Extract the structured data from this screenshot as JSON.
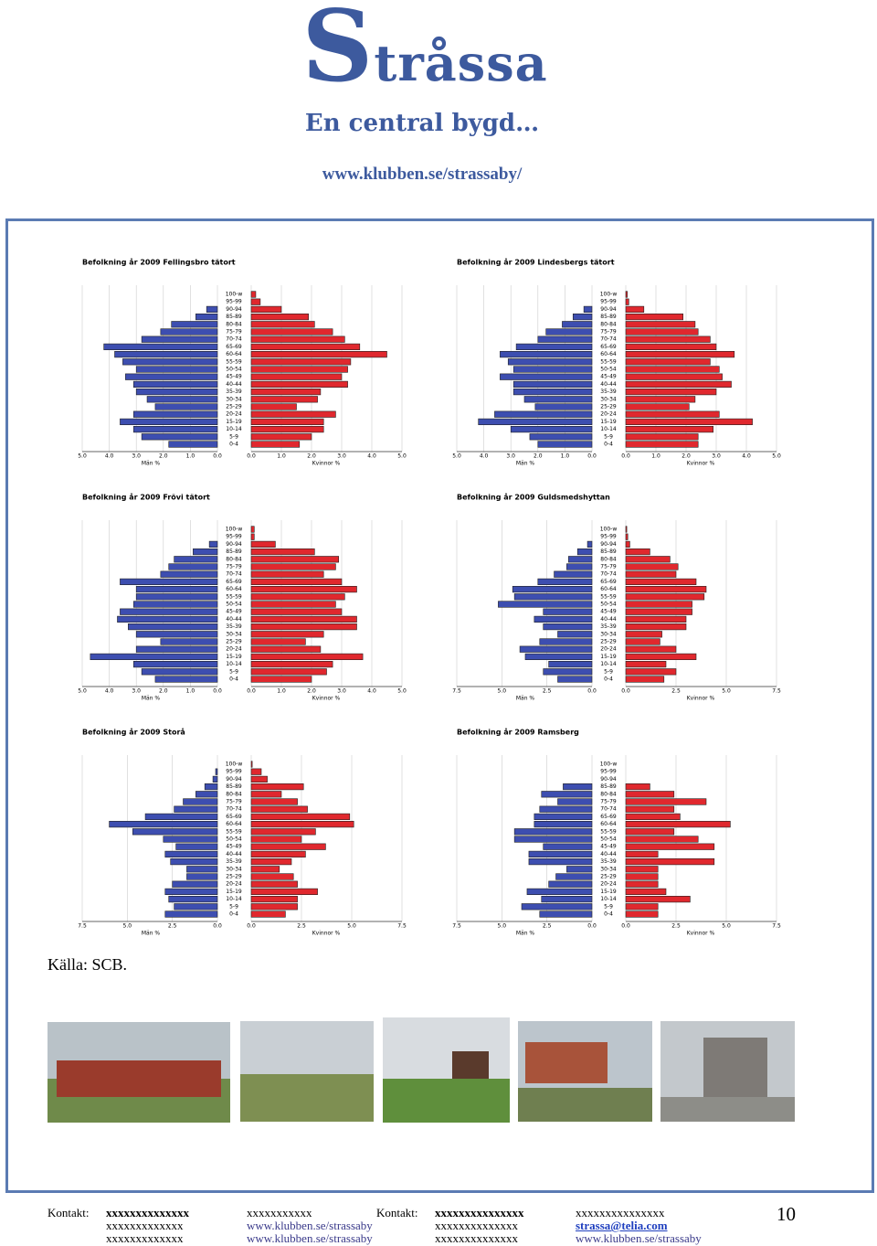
{
  "header": {
    "title": "Stråssa",
    "subtitle": "En central bygd…",
    "url": "www.klubben.se/strassaby/"
  },
  "chart_data": [
    {
      "type": "pyramid",
      "title": "Befolkning år 2009 Fellingsbro tätort",
      "categories": [
        "100-w",
        "95-99",
        "90-94",
        "85-89",
        "80-84",
        "75-79",
        "70-74",
        "65-69",
        "60-64",
        "55-59",
        "50-54",
        "45-49",
        "40-44",
        "35-39",
        "30-34",
        "25-29",
        "20-24",
        "15-19",
        "10-14",
        "5-9",
        "0-4"
      ],
      "series": [
        {
          "label": "Män %",
          "side": "left",
          "color": "#3d4eb0",
          "xlim": [
            0,
            5
          ],
          "xticks": [
            {
              "value": 5,
              "label": "5.0"
            },
            {
              "value": 4,
              "label": "4.0"
            },
            {
              "value": 3,
              "label": "3.0"
            },
            {
              "value": 2,
              "label": "2.0"
            },
            {
              "value": 1,
              "label": "1.0"
            },
            {
              "value": 0,
              "label": "0.0"
            }
          ],
          "values": [
            0,
            0,
            0.4,
            0.8,
            1.7,
            2.1,
            2.8,
            4.2,
            3.8,
            3.5,
            3.0,
            3.4,
            3.1,
            3.0,
            2.6,
            2.3,
            3.1,
            3.6,
            3.1,
            2.8,
            1.8
          ]
        },
        {
          "label": "Kvinnor %",
          "side": "right",
          "color": "#e0282e",
          "xlim": [
            0,
            5
          ],
          "xticks": [
            {
              "value": 0,
              "label": "0.0"
            },
            {
              "value": 1,
              "label": "1.0"
            },
            {
              "value": 2,
              "label": "2.0"
            },
            {
              "value": 3,
              "label": "3.0"
            },
            {
              "value": 4,
              "label": "4.0"
            },
            {
              "value": 5,
              "label": "5.0"
            }
          ],
          "values": [
            0.15,
            0.3,
            1.0,
            1.9,
            2.1,
            2.7,
            3.1,
            3.6,
            4.5,
            3.3,
            3.2,
            3.0,
            3.2,
            2.3,
            2.2,
            1.5,
            2.8,
            2.4,
            2.4,
            2.0,
            1.6
          ]
        }
      ]
    },
    {
      "type": "pyramid",
      "title": "Befolkning år 2009 Lindesbergs tätort",
      "categories": [
        "100-w",
        "95-99",
        "90-94",
        "85-89",
        "80-84",
        "75-79",
        "70-74",
        "65-69",
        "60-64",
        "55-59",
        "50-54",
        "45-49",
        "40-44",
        "35-39",
        "30-34",
        "25-29",
        "20-24",
        "15-19",
        "10-14",
        "5-9",
        "0-4"
      ],
      "series": [
        {
          "label": "Män %",
          "side": "left",
          "color": "#3d4eb0",
          "xlim": [
            0,
            5
          ],
          "xticks": [
            {
              "value": 5,
              "label": "5.0"
            },
            {
              "value": 4,
              "label": "4.0"
            },
            {
              "value": 3,
              "label": "3.0"
            },
            {
              "value": 2,
              "label": "2.0"
            },
            {
              "value": 1,
              "label": "1.0"
            },
            {
              "value": 0,
              "label": "0.0"
            }
          ],
          "values": [
            0,
            0,
            0.3,
            0.7,
            1.1,
            1.7,
            2.0,
            2.8,
            3.4,
            3.1,
            2.9,
            3.4,
            2.9,
            2.9,
            2.5,
            2.1,
            3.6,
            4.2,
            3.0,
            2.3,
            2.0
          ]
        },
        {
          "label": "Kvinnor %",
          "side": "right",
          "color": "#e0282e",
          "xlim": [
            0,
            5
          ],
          "xticks": [
            {
              "value": 0,
              "label": "0.0"
            },
            {
              "value": 1,
              "label": "1.0"
            },
            {
              "value": 2,
              "label": "2.0"
            },
            {
              "value": 3,
              "label": "3.0"
            },
            {
              "value": 4,
              "label": "4.0"
            },
            {
              "value": 5,
              "label": "5.0"
            }
          ],
          "values": [
            0.05,
            0.1,
            0.6,
            1.9,
            2.3,
            2.4,
            2.8,
            3.0,
            3.6,
            2.8,
            3.1,
            3.2,
            3.5,
            3.0,
            2.3,
            2.1,
            3.1,
            4.2,
            2.9,
            2.4,
            2.4
          ]
        }
      ]
    },
    {
      "type": "pyramid",
      "title": "Befolkning år 2009 Frövi tätort",
      "categories": [
        "100-w",
        "95-99",
        "90-94",
        "85-89",
        "80-84",
        "75-79",
        "70-74",
        "65-69",
        "60-64",
        "55-59",
        "50-54",
        "45-49",
        "40-44",
        "35-39",
        "30-34",
        "25-29",
        "20-24",
        "15-19",
        "10-14",
        "5-9",
        "0-4"
      ],
      "series": [
        {
          "label": "Män %",
          "side": "left",
          "color": "#3d4eb0",
          "xlim": [
            0,
            5
          ],
          "xticks": [
            {
              "value": 5,
              "label": "5.0"
            },
            {
              "value": 4,
              "label": "4.0"
            },
            {
              "value": 3,
              "label": "3.0"
            },
            {
              "value": 2,
              "label": "2.0"
            },
            {
              "value": 1,
              "label": "1.0"
            },
            {
              "value": 0,
              "label": "0.0"
            }
          ],
          "values": [
            0,
            0,
            0.3,
            0.9,
            1.6,
            1.8,
            2.1,
            3.6,
            3.0,
            3.0,
            3.1,
            3.6,
            3.7,
            3.3,
            3.0,
            2.1,
            3.0,
            4.7,
            3.1,
            2.8,
            2.3
          ]
        },
        {
          "label": "Kvinnor %",
          "side": "right",
          "color": "#e0282e",
          "xlim": [
            0,
            5
          ],
          "xticks": [
            {
              "value": 0,
              "label": "0.0"
            },
            {
              "value": 1,
              "label": "1.0"
            },
            {
              "value": 2,
              "label": "2.0"
            },
            {
              "value": 3,
              "label": "3.0"
            },
            {
              "value": 4,
              "label": "4.0"
            },
            {
              "value": 5,
              "label": "5.0"
            }
          ],
          "values": [
            0.1,
            0.1,
            0.8,
            2.1,
            2.9,
            2.8,
            2.4,
            3.0,
            3.5,
            3.1,
            2.8,
            3.0,
            3.5,
            3.5,
            2.4,
            1.8,
            2.3,
            3.7,
            2.7,
            2.5,
            2.0
          ]
        }
      ]
    },
    {
      "type": "pyramid",
      "title": "Befolkning år 2009 Guldsmedshyttan",
      "categories": [
        "100-w",
        "95-99",
        "90-94",
        "85-89",
        "80-84",
        "75-79",
        "70-74",
        "65-69",
        "60-64",
        "55-59",
        "50-54",
        "45-49",
        "40-44",
        "35-39",
        "30-34",
        "25-29",
        "20-24",
        "15-19",
        "10-14",
        "5-9",
        "0-4"
      ],
      "series": [
        {
          "label": "Män %",
          "side": "left",
          "color": "#3d4eb0",
          "xlim": [
            0,
            7.5
          ],
          "xticks": [
            7.5,
            {
              "value": 5,
              "label": "5.0"
            },
            2.5,
            {
              "value": 0,
              "label": "0.0"
            }
          ],
          "values": [
            0,
            0,
            0.25,
            0.8,
            1.3,
            1.4,
            2.1,
            3.0,
            4.4,
            4.3,
            5.2,
            2.7,
            3.2,
            2.7,
            1.9,
            2.9,
            4.0,
            3.7,
            2.4,
            2.7,
            1.9
          ]
        },
        {
          "label": "Kvinnor %",
          "side": "right",
          "color": "#e0282e",
          "xlim": [
            0,
            7.5
          ],
          "xticks": [
            {
              "value": 0,
              "label": "0.0"
            },
            2.5,
            {
              "value": 5,
              "label": "5.0"
            },
            7.5
          ],
          "values": [
            0.05,
            0.1,
            0.2,
            1.2,
            2.2,
            2.6,
            2.5,
            3.5,
            4.0,
            3.9,
            3.3,
            3.3,
            3.0,
            3.0,
            1.8,
            1.7,
            2.5,
            3.5,
            2.0,
            2.5,
            1.9
          ]
        }
      ]
    },
    {
      "type": "pyramid",
      "title": "Befolkning år 2009 Storå",
      "categories": [
        "100-w",
        "95-99",
        "90-94",
        "85-89",
        "80-84",
        "75-79",
        "70-74",
        "65-69",
        "60-64",
        "55-59",
        "50-54",
        "45-49",
        "40-44",
        "35-39",
        "30-34",
        "25-29",
        "20-24",
        "15-19",
        "10-14",
        "5-9",
        "0-4"
      ],
      "series": [
        {
          "label": "Män %",
          "side": "left",
          "color": "#3d4eb0",
          "xlim": [
            0,
            7.5
          ],
          "xticks": [
            7.5,
            {
              "value": 5,
              "label": "5.0"
            },
            2.5,
            {
              "value": 0,
              "label": "0.0"
            }
          ],
          "values": [
            0,
            0.1,
            0.25,
            0.7,
            1.2,
            1.9,
            2.4,
            4.0,
            6.0,
            4.7,
            3.0,
            2.3,
            2.9,
            2.6,
            1.7,
            1.7,
            2.5,
            2.9,
            2.7,
            2.4,
            2.9
          ]
        },
        {
          "label": "Kvinnor %",
          "side": "right",
          "color": "#e0282e",
          "xlim": [
            0,
            7.5
          ],
          "xticks": [
            {
              "value": 0,
              "label": "0.0"
            },
            2.5,
            {
              "value": 5,
              "label": "5.0"
            },
            7.5
          ],
          "values": [
            0.05,
            0.5,
            0.8,
            2.6,
            1.5,
            2.3,
            2.8,
            4.9,
            5.1,
            3.2,
            2.5,
            3.7,
            2.7,
            2.0,
            1.4,
            2.1,
            2.3,
            3.3,
            2.3,
            2.3,
            1.7
          ]
        }
      ]
    },
    {
      "type": "pyramid",
      "title": "Befolkning år 2009 Ramsberg",
      "categories": [
        "100-w",
        "95-99",
        "90-94",
        "85-89",
        "80-84",
        "75-79",
        "70-74",
        "65-69",
        "60-64",
        "55-59",
        "50-54",
        "45-49",
        "40-44",
        "35-39",
        "30-34",
        "25-29",
        "20-24",
        "15-19",
        "10-14",
        "5-9",
        "0-4"
      ],
      "series": [
        {
          "label": "Män %",
          "side": "left",
          "color": "#3d4eb0",
          "xlim": [
            0,
            7.5
          ],
          "xticks": [
            7.5,
            {
              "value": 5,
              "label": "5.0"
            },
            2.5,
            {
              "value": 0,
              "label": "0.0"
            }
          ],
          "values": [
            0,
            0,
            0,
            1.6,
            2.8,
            1.9,
            2.9,
            3.2,
            3.2,
            4.3,
            4.3,
            2.7,
            3.5,
            3.5,
            1.4,
            2.0,
            2.4,
            3.6,
            2.8,
            3.9,
            2.9
          ]
        },
        {
          "label": "Kvinnor %",
          "side": "right",
          "color": "#e0282e",
          "xlim": [
            0,
            7.5
          ],
          "xticks": [
            {
              "value": 0,
              "label": "0.0"
            },
            2.5,
            {
              "value": 5,
              "label": "5.0"
            },
            7.5
          ],
          "values": [
            0,
            0,
            0,
            1.2,
            2.4,
            4.0,
            2.4,
            2.7,
            5.2,
            2.4,
            3.6,
            4.4,
            1.6,
            4.4,
            1.6,
            1.6,
            1.6,
            2.0,
            3.2,
            1.6,
            1.6
          ]
        }
      ]
    }
  ],
  "source": "Källa: SCB.",
  "footer": {
    "rows": [
      [
        "Kontakt:",
        "xxxxxxxxxxxxxx",
        "xxxxxxxxxxx",
        "Kontakt:",
        "xxxxxxxxxxxxxxx",
        "xxxxxxxxxxxxxxx"
      ],
      [
        "xxxxxxxxxxxxx",
        "www.klubben.se/strassaby",
        "xxxxxxxxxxxxxx",
        "strassa@telia.com"
      ],
      [
        "xxxxxxxxxxxxx",
        "www.klubben.se/strassaby",
        "xxxxxxxxxxxxxx",
        "www.klubben.se/strassaby"
      ]
    ],
    "page": "10"
  }
}
